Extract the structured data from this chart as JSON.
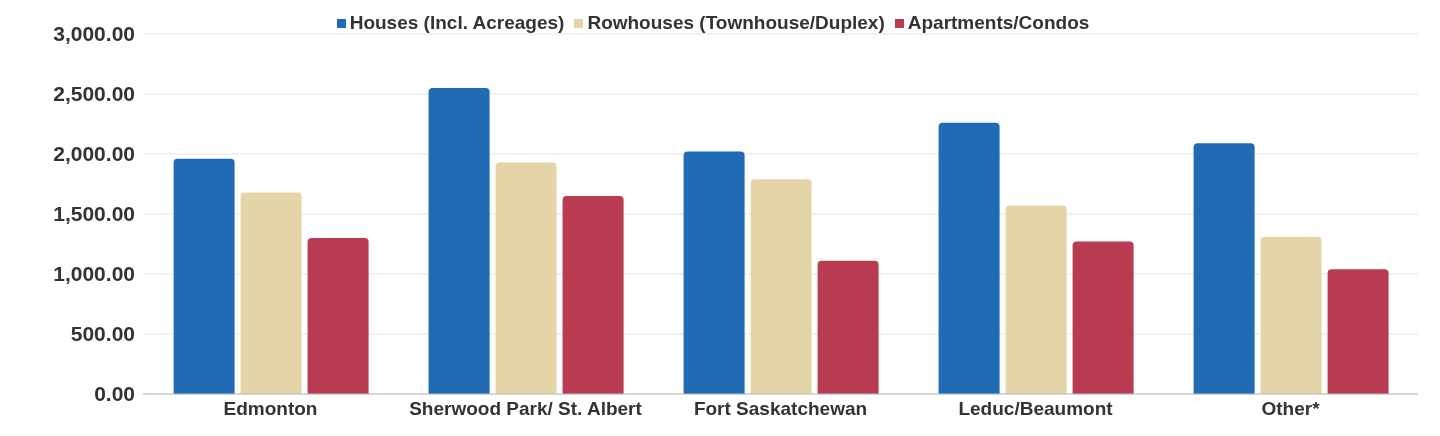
{
  "chart_data": {
    "type": "bar",
    "categories": [
      "Edmonton",
      "Sherwood Park/ St. Albert",
      "Fort Saskatchewan",
      "Leduc/Beaumont",
      "Other*"
    ],
    "series": [
      {
        "name": "Houses (Incl. Acreages)",
        "color": "#216ab4",
        "values": [
          1960,
          2550,
          2020,
          2260,
          2090
        ]
      },
      {
        "name": "Rowhouses (Townhouse/Duplex)",
        "color": "#e4d5a9",
        "values": [
          1680,
          1930,
          1790,
          1570,
          1310
        ]
      },
      {
        "name": "Apartments/Condos",
        "color": "#b83b51",
        "values": [
          1300,
          1650,
          1110,
          1270,
          1040
        ]
      }
    ],
    "ylim": [
      0,
      3000
    ],
    "yticks": [
      {
        "value": 0,
        "label": "0.00"
      },
      {
        "value": 500,
        "label": "500.00"
      },
      {
        "value": 1000,
        "label": "1,000.00"
      },
      {
        "value": 1500,
        "label": "1,500.00"
      },
      {
        "value": 2000,
        "label": "2,000.00"
      },
      {
        "value": 2500,
        "label": "2,500.00"
      },
      {
        "value": 3000,
        "label": "3,000.00"
      }
    ],
    "grid": "y",
    "legend": "top"
  }
}
